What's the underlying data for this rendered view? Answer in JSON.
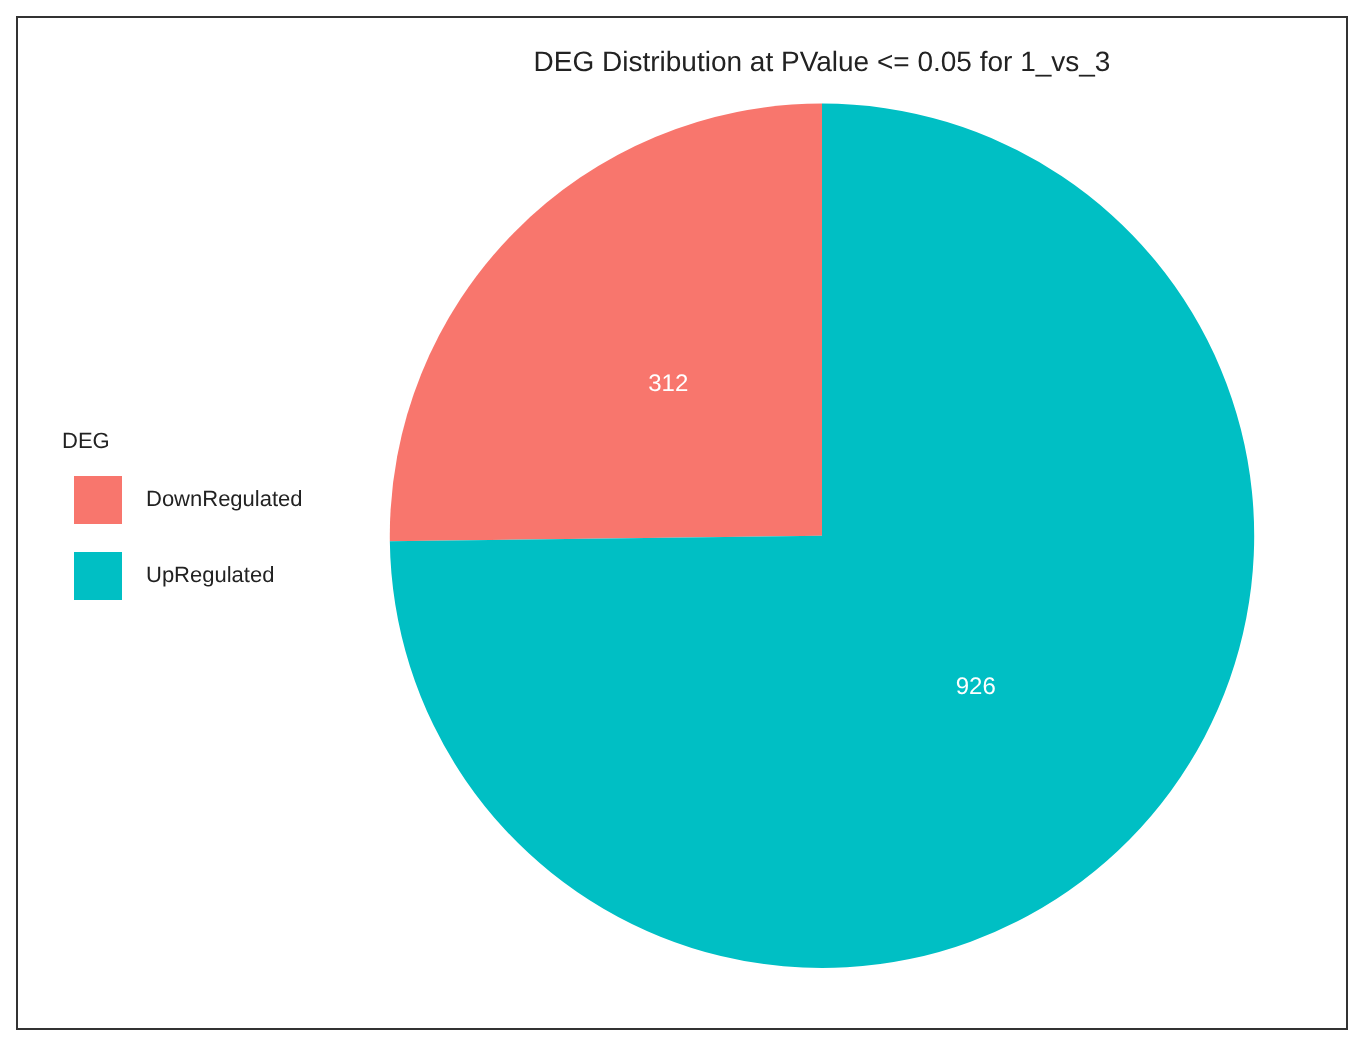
{
  "chart_data": {
    "type": "pie",
    "title": "DEG Distribution at PValue <= 0.05 for 1_vs_3",
    "legend_title": "DEG",
    "categories": [
      "DownRegulated",
      "UpRegulated"
    ],
    "values": [
      312,
      926
    ],
    "colors": [
      "#f8766d",
      "#00bfc4"
    ],
    "data_labels": true,
    "legend": "left"
  }
}
